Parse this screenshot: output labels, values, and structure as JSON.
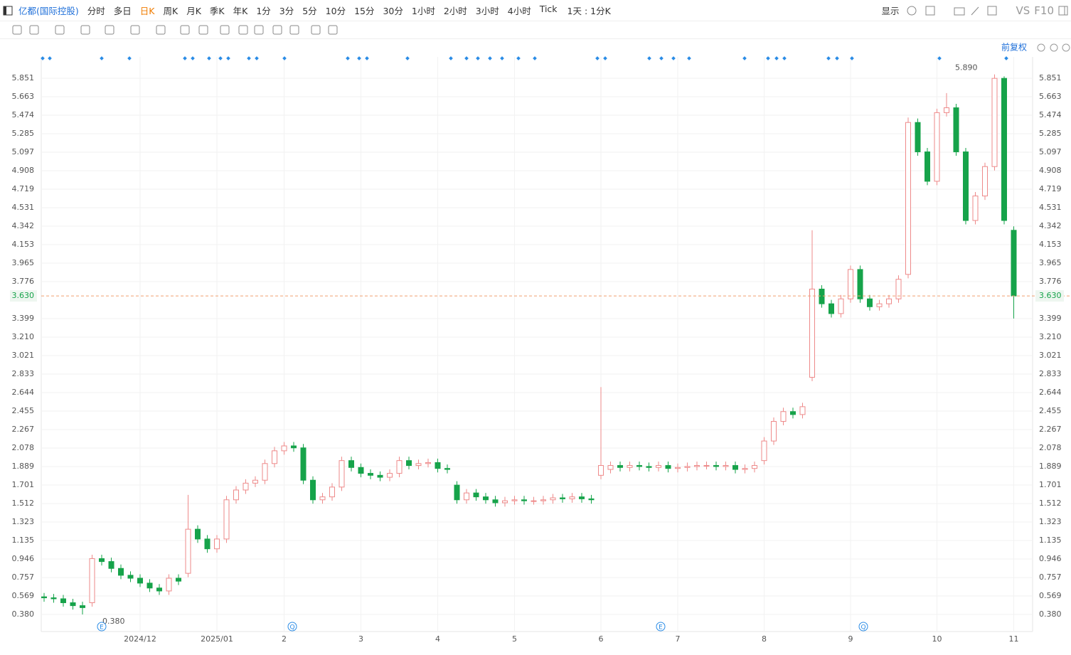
{
  "toolbar": {
    "stock": "亿都(国际控股)",
    "periods": [
      "分时",
      "多日",
      "日K",
      "周K",
      "月K",
      "季K",
      "年K",
      "1分",
      "3分",
      "5分",
      "10分",
      "15分",
      "30分",
      "1小时",
      "2小时",
      "3小时",
      "4小时",
      "Tick"
    ],
    "active": "日K",
    "range": "1天 : 1分K",
    "display": "显示",
    "vs": "VS",
    "f10": "F10"
  },
  "adjust": "前复权",
  "events": [
    "E",
    "Q",
    "E",
    "Q"
  ],
  "chart_data": {
    "type": "candlestick",
    "up_color": "#ee8a8a",
    "down_color": "#16a34a",
    "categories": [
      null,
      null,
      null,
      null,
      null,
      null,
      null,
      null,
      null,
      null,
      "2024/12",
      null,
      null,
      null,
      null,
      null,
      null,
      null,
      "2025/01",
      null,
      null,
      null,
      null,
      null,
      null,
      "2",
      null,
      null,
      null,
      null,
      null,
      null,
      null,
      "3",
      null,
      null,
      null,
      null,
      null,
      null,
      null,
      "4",
      null,
      null,
      null,
      null,
      null,
      null,
      null,
      "5",
      null,
      null,
      null,
      null,
      null,
      null,
      null,
      null,
      "6",
      null,
      null,
      null,
      null,
      null,
      null,
      null,
      "7",
      null,
      null,
      null,
      null,
      null,
      null,
      null,
      null,
      "8",
      null,
      null,
      null,
      null,
      null,
      null,
      null,
      null,
      "9",
      null,
      null,
      null,
      null,
      null,
      null,
      null,
      null,
      "10",
      null,
      null,
      null,
      null,
      null,
      null,
      null,
      "11"
    ],
    "open": [
      0.56,
      0.55,
      0.54,
      0.5,
      0.47,
      0.5,
      0.95,
      0.92,
      0.85,
      0.78,
      0.75,
      0.7,
      0.65,
      0.62,
      0.75,
      0.8,
      1.25,
      1.15,
      1.05,
      1.15,
      1.55,
      1.65,
      1.72,
      1.75,
      1.92,
      2.05,
      2.1,
      2.08,
      1.75,
      1.55,
      1.58,
      1.68,
      1.95,
      1.88,
      1.82,
      1.8,
      1.78,
      1.82,
      1.95,
      1.9,
      1.92,
      1.93,
      1.87,
      1.7,
      1.55,
      1.62,
      1.58,
      1.55,
      1.52,
      1.54,
      1.55,
      1.54,
      1.54,
      1.55,
      1.57,
      1.56,
      1.58,
      1.56,
      1.8,
      1.86,
      1.9,
      1.88,
      1.9,
      1.89,
      1.88,
      1.9,
      1.87,
      1.88,
      1.89,
      1.9,
      1.9,
      1.89,
      1.9,
      1.86,
      1.87,
      1.95,
      2.15,
      2.35,
      2.45,
      2.42,
      2.8,
      3.7,
      3.55,
      3.45,
      3.6,
      3.9,
      3.6,
      3.52,
      3.55,
      3.6,
      3.85,
      5.4,
      5.1,
      4.8,
      5.5,
      5.55,
      5.1,
      4.4,
      4.65,
      4.95,
      5.85,
      4.3
    ],
    "high": [
      0.6,
      0.59,
      0.58,
      0.54,
      0.51,
      0.99,
      0.99,
      0.96,
      0.89,
      0.82,
      0.79,
      0.74,
      0.69,
      0.79,
      0.79,
      1.6,
      1.29,
      1.19,
      1.19,
      1.59,
      1.69,
      1.76,
      1.79,
      1.96,
      2.09,
      2.14,
      2.14,
      2.12,
      1.79,
      1.62,
      1.72,
      1.99,
      1.99,
      1.92,
      1.86,
      1.84,
      1.86,
      1.99,
      1.99,
      1.96,
      1.97,
      1.97,
      1.91,
      1.74,
      1.66,
      1.66,
      1.62,
      1.59,
      1.58,
      1.59,
      1.59,
      1.58,
      1.59,
      1.61,
      1.61,
      1.62,
      1.62,
      1.6,
      2.7,
      1.94,
      1.94,
      1.94,
      1.94,
      1.93,
      1.94,
      1.94,
      1.92,
      1.93,
      1.94,
      1.94,
      1.94,
      1.94,
      1.94,
      1.91,
      1.94,
      2.19,
      2.39,
      2.49,
      2.49,
      2.54,
      4.3,
      3.74,
      3.59,
      3.64,
      3.94,
      3.94,
      3.64,
      3.59,
      3.64,
      3.84,
      5.45,
      5.44,
      5.14,
      5.54,
      5.7,
      5.59,
      5.14,
      4.69,
      4.99,
      5.89,
      5.87,
      4.34
    ],
    "low": [
      0.51,
      0.5,
      0.46,
      0.43,
      0.38,
      0.46,
      0.88,
      0.81,
      0.74,
      0.71,
      0.66,
      0.61,
      0.58,
      0.58,
      0.68,
      0.76,
      1.11,
      1.01,
      1.01,
      1.11,
      1.51,
      1.61,
      1.68,
      1.71,
      1.88,
      2.01,
      2.04,
      1.71,
      1.51,
      1.51,
      1.54,
      1.64,
      1.84,
      1.78,
      1.76,
      1.74,
      1.74,
      1.78,
      1.86,
      1.86,
      1.88,
      1.83,
      1.82,
      1.51,
      1.51,
      1.54,
      1.51,
      1.48,
      1.48,
      1.5,
      1.5,
      1.5,
      1.5,
      1.51,
      1.52,
      1.52,
      1.52,
      1.51,
      1.76,
      1.82,
      1.84,
      1.84,
      1.85,
      1.84,
      1.84,
      1.83,
      1.83,
      1.84,
      1.85,
      1.86,
      1.85,
      1.85,
      1.82,
      1.82,
      1.83,
      1.91,
      2.11,
      2.31,
      2.38,
      2.38,
      2.76,
      3.51,
      3.41,
      3.41,
      3.56,
      3.56,
      3.48,
      3.48,
      3.51,
      3.56,
      3.81,
      5.06,
      4.76,
      4.76,
      5.46,
      5.06,
      4.36,
      4.36,
      4.61,
      4.91,
      4.36,
      3.4
    ],
    "close": [
      0.55,
      0.54,
      0.5,
      0.47,
      0.45,
      0.95,
      0.92,
      0.85,
      0.78,
      0.75,
      0.7,
      0.65,
      0.62,
      0.75,
      0.72,
      1.25,
      1.15,
      1.05,
      1.15,
      1.55,
      1.65,
      1.72,
      1.75,
      1.92,
      2.05,
      2.1,
      2.08,
      1.75,
      1.55,
      1.58,
      1.68,
      1.95,
      1.88,
      1.82,
      1.8,
      1.78,
      1.82,
      1.95,
      1.9,
      1.92,
      1.93,
      1.87,
      1.86,
      1.55,
      1.62,
      1.58,
      1.55,
      1.52,
      1.54,
      1.55,
      1.54,
      1.54,
      1.55,
      1.57,
      1.56,
      1.58,
      1.56,
      1.55,
      1.9,
      1.9,
      1.88,
      1.9,
      1.89,
      1.88,
      1.9,
      1.87,
      1.88,
      1.89,
      1.9,
      1.9,
      1.89,
      1.9,
      1.86,
      1.87,
      1.9,
      2.15,
      2.35,
      2.45,
      2.42,
      2.5,
      3.7,
      3.55,
      3.45,
      3.6,
      3.9,
      3.6,
      3.52,
      3.55,
      3.6,
      3.8,
      5.4,
      5.1,
      4.8,
      5.5,
      5.55,
      5.1,
      4.4,
      4.65,
      4.95,
      5.85,
      4.4,
      3.63
    ],
    "ylim": [
      0.206,
      6.069
    ],
    "yticks": [
      {
        "value": 0.38,
        "label": "0.380"
      },
      0.569,
      0.757,
      0.946,
      1.135,
      1.323,
      1.512,
      1.701,
      1.889,
      2.078,
      2.267,
      2.455,
      2.644,
      2.833,
      3.021,
      {
        "value": 3.21,
        "label": "3.210"
      },
      3.399,
      3.776,
      3.965,
      4.153,
      4.342,
      4.531,
      4.719,
      4.908,
      5.097,
      5.285,
      5.474,
      5.663,
      5.851
    ],
    "grid": true,
    "max_label": {
      "value": 5.89,
      "label": "5.890"
    },
    "min_label": {
      "value": 0.38,
      "label": "0.380"
    },
    "last_price": {
      "value": 3.63,
      "label": "3.630"
    }
  }
}
